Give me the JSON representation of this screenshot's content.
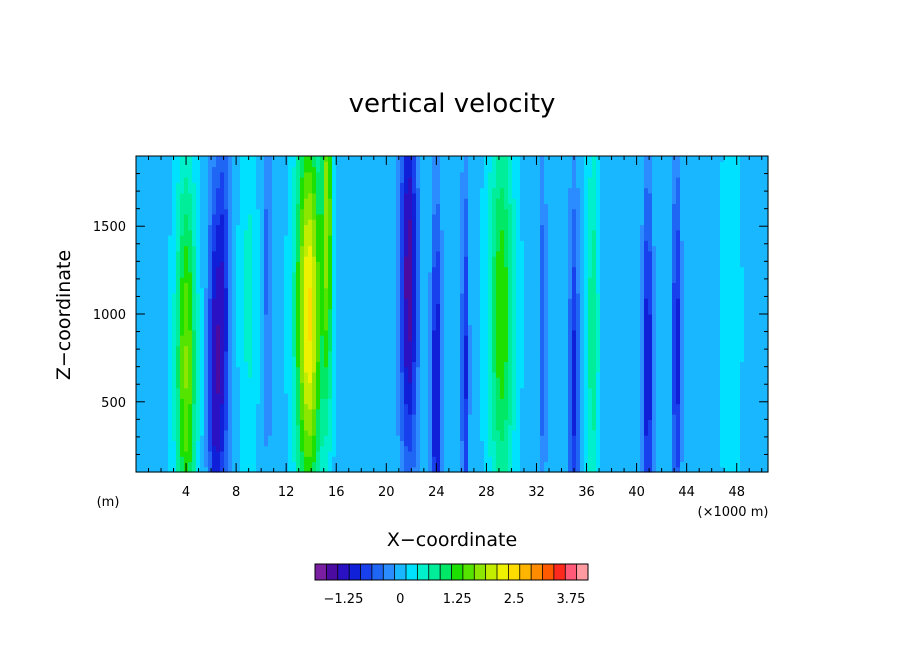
{
  "chart_data": {
    "type": "heatmap",
    "title": "vertical velocity",
    "xlabel": "X−coordinate",
    "ylabel": "Z−coordinate",
    "x_unit_label": "(×1000 m)",
    "y_unit_label": "(m)",
    "xlim": [
      0,
      50.5
    ],
    "ylim": [
      100,
      1900
    ],
    "x_ticks": [
      4,
      8,
      12,
      16,
      20,
      24,
      28,
      32,
      36,
      40,
      44,
      48
    ],
    "y_ticks": [
      500,
      1000,
      1500
    ],
    "colorbar": {
      "min": -1.875,
      "step": 0.25,
      "levels": 24,
      "tick_values": [
        -1.25,
        0,
        1.25,
        2.5,
        3.75
      ],
      "tick_labels": [
        "−1.25",
        "0",
        "1.25",
        "2.5",
        "3.75"
      ],
      "colors": [
        "#7a1fa2",
        "#4b0aa0",
        "#2a12c4",
        "#1020d8",
        "#1840ec",
        "#1f66f5",
        "#2a8cff",
        "#19b7ff",
        "#00e0ff",
        "#00f0cc",
        "#00ee99",
        "#00e866",
        "#1ee000",
        "#55e400",
        "#8de600",
        "#c2ec00",
        "#eef200",
        "#ffdc00",
        "#ffb400",
        "#ff8c00",
        "#ff5a00",
        "#ff2a1e",
        "#ff5a78",
        "#ff9aa0"
      ]
    },
    "columns": [
      {
        "x": 4.0,
        "z_center": 700,
        "peak": 1.6,
        "width": 0.8
      },
      {
        "x": 6.3,
        "z_center": 650,
        "peak": -1.3,
        "width": 0.55
      },
      {
        "x": 7.0,
        "z_center": 1000,
        "peak": -1.0,
        "width": 0.5
      },
      {
        "x": 9.0,
        "z_center": 1100,
        "peak": 0.4,
        "width": 0.7
      },
      {
        "x": 10.5,
        "z_center": 1300,
        "peak": -0.5,
        "width": 0.45
      },
      {
        "x": 13.8,
        "z_center": 1000,
        "peak": 2.4,
        "width": 1.0
      },
      {
        "x": 15.3,
        "z_center": 1600,
        "peak": 1.6,
        "width": 0.4
      },
      {
        "x": 21.8,
        "z_center": 1200,
        "peak": -1.6,
        "width": 0.7
      },
      {
        "x": 24.0,
        "z_center": 550,
        "peak": -1.3,
        "width": 0.4
      },
      {
        "x": 26.3,
        "z_center": 700,
        "peak": -1.0,
        "width": 0.3
      },
      {
        "x": 29.2,
        "z_center": 1000,
        "peak": 1.3,
        "width": 1.0
      },
      {
        "x": 32.5,
        "z_center": 900,
        "peak": -0.6,
        "width": 0.3
      },
      {
        "x": 35.0,
        "z_center": 600,
        "peak": -1.0,
        "width": 0.4
      },
      {
        "x": 36.5,
        "z_center": 900,
        "peak": 0.8,
        "width": 0.45
      },
      {
        "x": 40.9,
        "z_center": 700,
        "peak": -1.2,
        "width": 0.4
      },
      {
        "x": 43.2,
        "z_center": 800,
        "peak": -1.1,
        "width": 0.35
      },
      {
        "x": 47.5,
        "z_center": 1000,
        "peak": 0.3,
        "width": 0.8
      }
    ]
  }
}
